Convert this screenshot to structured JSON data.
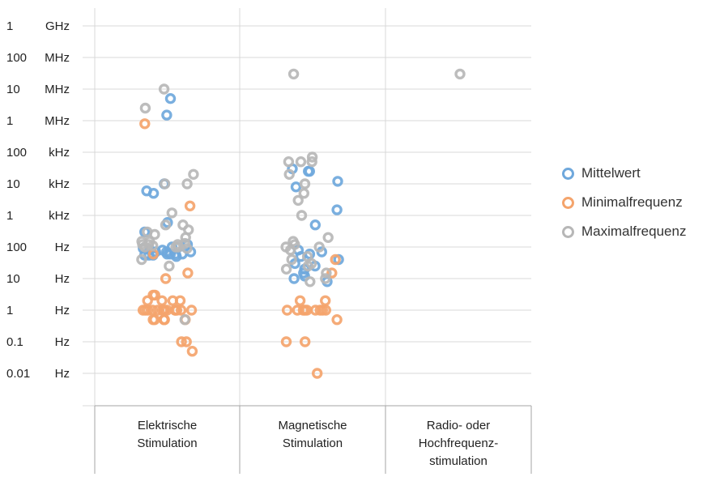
{
  "chart_data": {
    "type": "scatter",
    "y_scale": "log",
    "y_ticks": [
      {
        "value": 1000000000.0,
        "num": "1",
        "unit": "GHz"
      },
      {
        "value": 100000000.0,
        "num": "100",
        "unit": "MHz"
      },
      {
        "value": 10000000.0,
        "num": "10",
        "unit": "MHz"
      },
      {
        "value": 1000000.0,
        "num": "1",
        "unit": "MHz"
      },
      {
        "value": 100000.0,
        "num": "100",
        "unit": "kHz"
      },
      {
        "value": 10000.0,
        "num": "10",
        "unit": "kHz"
      },
      {
        "value": 1000.0,
        "num": "1",
        "unit": "kHz"
      },
      {
        "value": 100,
        "num": "100",
        "unit": "Hz"
      },
      {
        "value": 10,
        "num": "10",
        "unit": "Hz"
      },
      {
        "value": 1,
        "num": "1",
        "unit": "Hz"
      },
      {
        "value": 0.1,
        "num": "0.1",
        "unit": "Hz"
      },
      {
        "value": 0.01,
        "num": "0.01",
        "unit": "Hz"
      }
    ],
    "ylim": [
      0.003,
      3000000000.0
    ],
    "categories": [
      [
        "Elektrische",
        "Stimulation"
      ],
      [
        "Magnetische",
        "Stimulation"
      ],
      [
        "Radio- oder",
        "Hochfrequenz-",
        "stimulation"
      ]
    ],
    "grid": true,
    "legend_position": "right",
    "series": [
      {
        "name": "Mittelwert",
        "color": "#6fa8dc",
        "points": [
          [
            0,
            1500000.0
          ],
          [
            0,
            5000000.0
          ],
          [
            0,
            6000
          ],
          [
            0,
            5000
          ],
          [
            0,
            10000
          ],
          [
            0,
            600
          ],
          [
            0,
            300
          ],
          [
            0,
            120
          ],
          [
            0,
            100
          ],
          [
            0,
            80
          ],
          [
            0,
            70
          ],
          [
            0,
            60
          ],
          [
            0,
            60
          ],
          [
            0,
            55
          ],
          [
            0,
            60
          ],
          [
            0,
            55
          ],
          [
            0,
            50
          ],
          [
            0,
            55
          ],
          [
            0,
            60
          ],
          [
            0,
            70
          ],
          [
            0,
            80
          ],
          [
            0,
            90
          ],
          [
            0,
            70
          ],
          [
            1,
            12000.0
          ],
          [
            1,
            30000.0
          ],
          [
            1,
            25000.0
          ],
          [
            1,
            1500
          ],
          [
            1,
            8000
          ],
          [
            1,
            25000.0
          ],
          [
            1,
            500
          ],
          [
            1,
            70
          ],
          [
            1,
            50
          ],
          [
            1,
            30
          ],
          [
            1,
            40
          ],
          [
            1,
            60
          ],
          [
            1,
            80
          ],
          [
            1,
            25
          ],
          [
            1,
            15
          ],
          [
            1,
            10
          ],
          [
            1,
            8
          ],
          [
            1,
            12
          ],
          [
            1,
            20
          ]
        ]
      },
      {
        "name": "Minimalfrequenz",
        "color": "#f4a46c",
        "points": [
          [
            0,
            800000
          ],
          [
            0,
            2000
          ],
          [
            0,
            60
          ],
          [
            0,
            15
          ],
          [
            0,
            10
          ],
          [
            0,
            3
          ],
          [
            0,
            2
          ],
          [
            0,
            2
          ],
          [
            0,
            1
          ],
          [
            0,
            1
          ],
          [
            0,
            1
          ],
          [
            0,
            1
          ],
          [
            0,
            1
          ],
          [
            0,
            1
          ],
          [
            0,
            1
          ],
          [
            0,
            1
          ],
          [
            0,
            1
          ],
          [
            0,
            1
          ],
          [
            0,
            1
          ],
          [
            0,
            1
          ],
          [
            0,
            1
          ],
          [
            0,
            1
          ],
          [
            0,
            0.5
          ],
          [
            0,
            0.5
          ],
          [
            0,
            0.5
          ],
          [
            0,
            0.5
          ],
          [
            0,
            0.5
          ],
          [
            0,
            0.5
          ],
          [
            0,
            2
          ],
          [
            0,
            2
          ],
          [
            0,
            3
          ],
          [
            0,
            0.1
          ],
          [
            0,
            0.1
          ],
          [
            0,
            0.05
          ],
          [
            1,
            40
          ],
          [
            1,
            15
          ],
          [
            1,
            1
          ],
          [
            1,
            1
          ],
          [
            1,
            1
          ],
          [
            1,
            1
          ],
          [
            1,
            1
          ],
          [
            1,
            1
          ],
          [
            1,
            1
          ],
          [
            1,
            1
          ],
          [
            1,
            1
          ],
          [
            1,
            2
          ],
          [
            1,
            2
          ],
          [
            1,
            0.5
          ],
          [
            1,
            0.1
          ],
          [
            1,
            0.1
          ],
          [
            1,
            0.01
          ]
        ]
      },
      {
        "name": "Maximalfrequenz",
        "color": "#b7b7b7",
        "points": [
          [
            0,
            10000000.0
          ],
          [
            0,
            2500000.0
          ],
          [
            0,
            20000.0
          ],
          [
            0,
            10000.0
          ],
          [
            0,
            10000.0
          ],
          [
            0,
            1200
          ],
          [
            0,
            500
          ],
          [
            0,
            300
          ],
          [
            0,
            500
          ],
          [
            0,
            350
          ],
          [
            0,
            250
          ],
          [
            0,
            150
          ],
          [
            0,
            120
          ],
          [
            0,
            100
          ],
          [
            0,
            120
          ],
          [
            0,
            100
          ],
          [
            0,
            90
          ],
          [
            0,
            110
          ],
          [
            0,
            130
          ],
          [
            0,
            150
          ],
          [
            0,
            120
          ],
          [
            0,
            100
          ],
          [
            0,
            40
          ],
          [
            0,
            25
          ],
          [
            0,
            0.5
          ],
          [
            0,
            200
          ],
          [
            1,
            30000000.0
          ],
          [
            1,
            70000.0
          ],
          [
            1,
            50000.0
          ],
          [
            1,
            50000.0
          ],
          [
            1,
            50000.0
          ],
          [
            1,
            20000.0
          ],
          [
            1,
            10000.0
          ],
          [
            1,
            3000
          ],
          [
            1,
            1000
          ],
          [
            1,
            200
          ],
          [
            1,
            150
          ],
          [
            1,
            120
          ],
          [
            1,
            100
          ],
          [
            1,
            100
          ],
          [
            1,
            80
          ],
          [
            1,
            50
          ],
          [
            1,
            40
          ],
          [
            1,
            30
          ],
          [
            1,
            25
          ],
          [
            1,
            20
          ],
          [
            1,
            15
          ],
          [
            1,
            8
          ],
          [
            1,
            10
          ],
          [
            1,
            5000
          ],
          [
            2,
            30000000.0
          ]
        ]
      }
    ]
  }
}
